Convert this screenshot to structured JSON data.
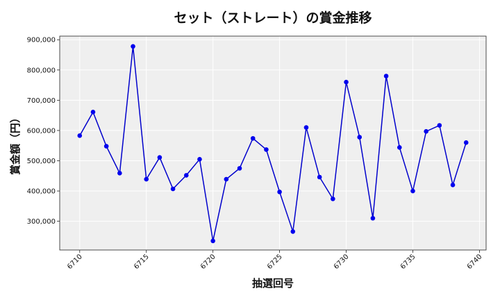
{
  "chart_data": {
    "type": "line",
    "title": "セット（ストレート）の賞金推移",
    "xlabel": "抽選回号",
    "ylabel": "賞金額（円）",
    "xlim": [
      6708.5,
      6740.5
    ],
    "ylim": [
      205000,
      912000
    ],
    "xticks": [
      6710,
      6715,
      6720,
      6725,
      6730,
      6735,
      6740
    ],
    "yticks": [
      300000,
      400000,
      500000,
      600000,
      700000,
      800000,
      900000
    ],
    "ytick_labels": [
      "300,000",
      "400,000",
      "500,000",
      "600,000",
      "700,000",
      "800,000",
      "900,000"
    ],
    "grid": true,
    "line_color": "#0000cc",
    "marker_color": "#0000ee",
    "plot_background": "#efefef",
    "x": [
      6710,
      6711,
      6712,
      6713,
      6714,
      6715,
      6716,
      6717,
      6718,
      6719,
      6720,
      6721,
      6722,
      6723,
      6724,
      6725,
      6726,
      6727,
      6728,
      6729,
      6730,
      6731,
      6732,
      6733,
      6734,
      6735,
      6736,
      6737,
      6738,
      6739
    ],
    "y": [
      583000,
      661000,
      548000,
      459000,
      878000,
      439000,
      511000,
      407000,
      452000,
      505000,
      235000,
      439000,
      475000,
      574000,
      537000,
      397000,
      266000,
      610000,
      446000,
      374000,
      760000,
      578000,
      310000,
      780000,
      544000,
      400000,
      597000,
      617000,
      420000,
      560000
    ]
  }
}
